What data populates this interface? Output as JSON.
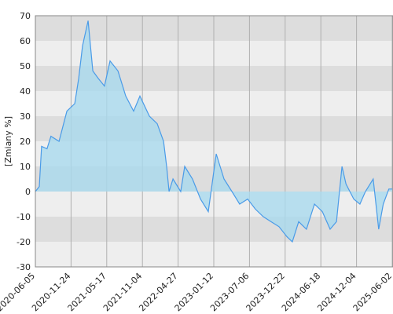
{
  "chart_data": {
    "type": "area",
    "y_label": "[Zmiany %]",
    "x": [
      "2020-06-05",
      "2020-06-24",
      "2020-07-05",
      "2020-07-31",
      "2020-08-19",
      "2020-09-27",
      "2020-11-04",
      "2020-12-12",
      "2020-12-31",
      "2021-01-19",
      "2021-02-15",
      "2021-03-10",
      "2021-04-06",
      "2021-05-06",
      "2021-06-02",
      "2021-07-10",
      "2021-08-16",
      "2021-09-23",
      "2021-10-23",
      "2021-12-08",
      "2022-01-15",
      "2022-02-15",
      "2022-03-02",
      "2022-03-14",
      "2022-04-02",
      "2022-05-16",
      "2022-06-14",
      "2022-08-10",
      "2022-10-07",
      "2022-12-03",
      "2023-01-24",
      "2023-03-03",
      "2023-04-11",
      "2023-05-19",
      "2023-06-27",
      "2023-08-03",
      "2023-09-09",
      "2023-10-16",
      "2023-11-23",
      "2023-12-31",
      "2024-01-27",
      "2024-02-28",
      "2024-04-07",
      "2024-05-17",
      "2024-06-25",
      "2024-08-01",
      "2024-08-31",
      "2024-09-26",
      "2024-10-15",
      "2024-11-21",
      "2024-12-21",
      "2025-01-18",
      "2025-02-26",
      "2025-03-26",
      "2025-04-18",
      "2025-05-16",
      "2025-06-02"
    ],
    "series": [
      {
        "name": "Zmiany",
        "color": "#4a9be8",
        "fill": "#a9d9ee",
        "values": [
          0,
          2,
          18,
          17,
          22,
          20,
          32,
          35,
          45,
          58,
          68,
          48,
          45,
          42,
          52,
          48,
          38,
          32,
          38,
          30,
          27,
          20,
          10,
          0,
          5,
          0,
          10,
          5,
          -3,
          -8,
          15,
          5,
          0,
          -5,
          -3,
          -7,
          -10,
          -12,
          -14,
          -18,
          -20,
          -12,
          -15,
          -5,
          -8,
          -15,
          -12,
          10,
          3,
          -3,
          -5,
          0,
          5,
          -15,
          -5,
          1,
          1
        ]
      }
    ],
    "xlim": [
      "2020-06-05",
      "2025-06-02"
    ],
    "xticks": [
      "2020-06-05",
      "2020-11-24",
      "2021-05-17",
      "2021-11-04",
      "2022-04-27",
      "2023-01-12",
      "2023-07-06",
      "2023-12-22",
      "2024-06-18",
      "2024-12-04",
      "2025-06-02"
    ],
    "ylim": [
      -30,
      70
    ],
    "yticks": [
      -30,
      -20,
      -10,
      0,
      10,
      20,
      30,
      40,
      50,
      60,
      70
    ],
    "band_colors": [
      "#dddddd",
      "#eeeeee"
    ],
    "grid": true
  }
}
